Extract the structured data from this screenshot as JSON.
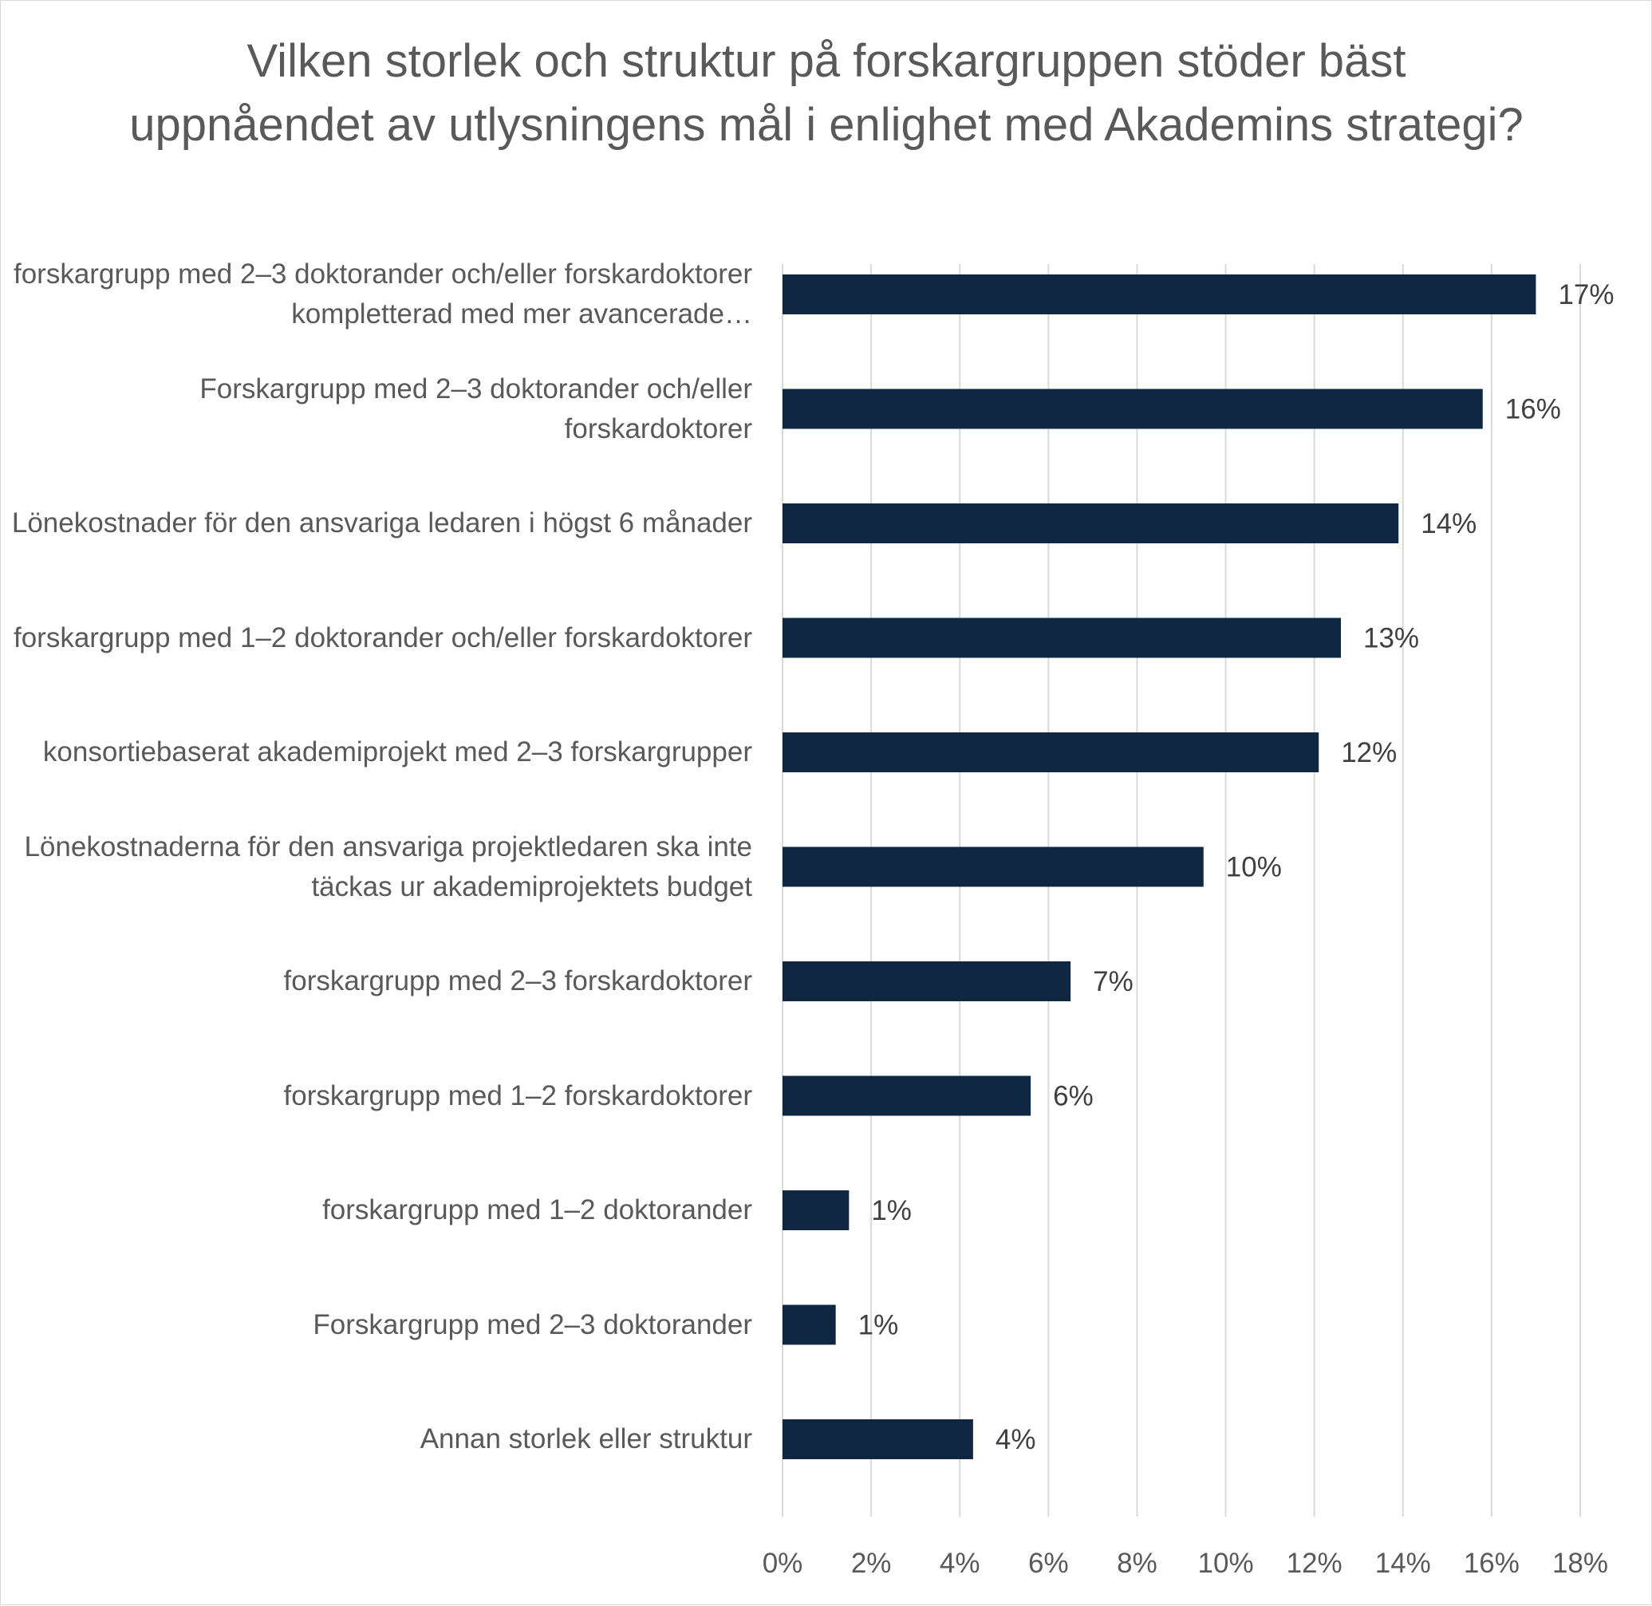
{
  "chart_data": {
    "type": "bar",
    "orientation": "horizontal",
    "title": "Vilken storlek och struktur på forskargruppen stöder bäst uppnåendet av utlysningens mål i enlighet med Akademins strategi?",
    "xlabel": "",
    "ylabel": "",
    "categories": [
      "forskargrupp med 2–3 doktorander och/eller forskardoktorer kompletterad med mer avancerade…",
      "Forskargrupp med 2–3 doktorander och/eller forskardoktorer",
      "Lönekostnader för den ansvariga ledaren i högst 6 månader",
      "forskargrupp med 1–2 doktorander och/eller forskardoktorer",
      "konsortiebaserat akademiprojekt med 2–3 forskargrupper",
      "Lönekostnaderna för den ansvariga projektledaren ska inte täckas ur akademiprojektets budget",
      "forskargrupp med 2–3 forskardoktorer",
      "forskargrupp med 1–2 forskardoktorer",
      "forskargrupp med 1–2 doktorander",
      "Forskargrupp med 2–3 doktorander",
      "Annan storlek eller struktur"
    ],
    "values": [
      17.0,
      15.8,
      13.9,
      12.6,
      12.1,
      9.5,
      6.5,
      5.6,
      1.5,
      1.2,
      4.3
    ],
    "data_labels": [
      "17%",
      "16%",
      "14%",
      "13%",
      "12%",
      "10%",
      "7%",
      "6%",
      "1%",
      "1%",
      "4%"
    ],
    "xlim": [
      0,
      18
    ],
    "x_ticks": [
      "0%",
      "2%",
      "4%",
      "6%",
      "8%",
      "10%",
      "12%",
      "14%",
      "16%",
      "18%"
    ],
    "grid": true,
    "legend": "none",
    "colors": {
      "bar": "#0f2741",
      "grid": "#d9d9d9",
      "text": "#595959",
      "value_text": "#404040"
    }
  }
}
